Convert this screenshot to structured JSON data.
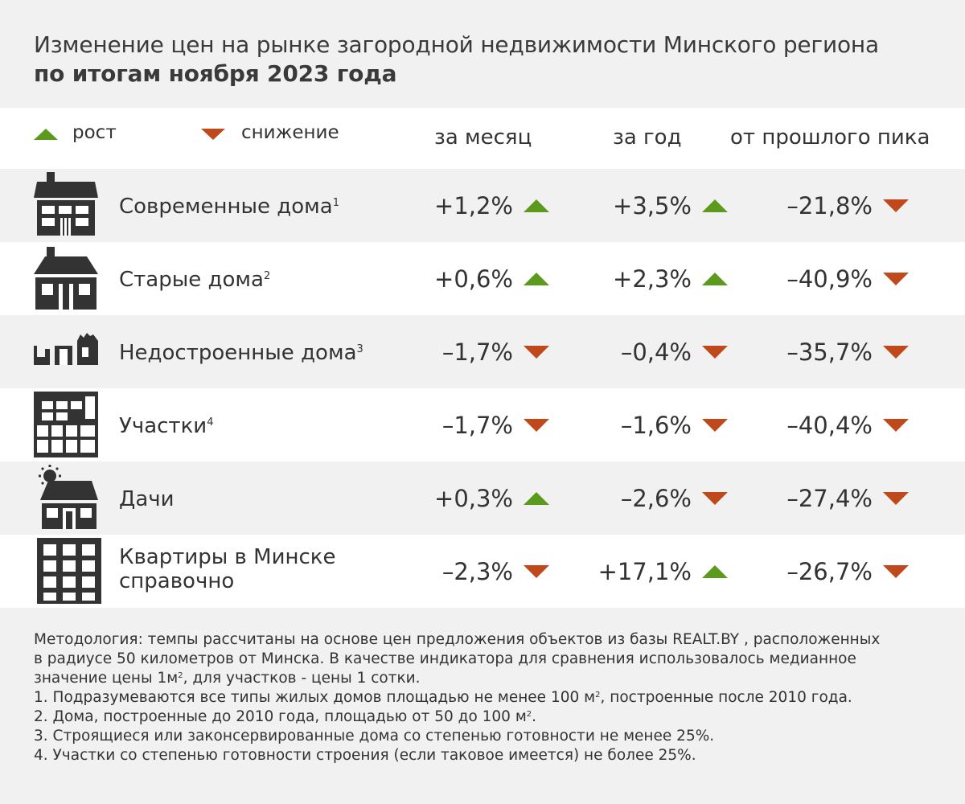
{
  "title": {
    "line1": "Изменение цен на рынке загородной недвижимости Минского региона",
    "line2": "по итогам ноября 2023 года"
  },
  "legend": {
    "up": "рост",
    "down": "снижение"
  },
  "columns": {
    "month": "за месяц",
    "year": "за год",
    "peak": "от прошлого пика"
  },
  "colors": {
    "up": "#5c9a1e",
    "down": "#c0491b",
    "icon": "#333333"
  },
  "rows": [
    {
      "label": "Современные дома",
      "sup": "1",
      "icon": "modern-house-icon",
      "month": "+1,2%",
      "month_dir": "up",
      "year": "+3,5%",
      "year_dir": "up",
      "peak": "–21,8%",
      "peak_dir": "down"
    },
    {
      "label": "Старые дома",
      "sup": "2",
      "icon": "old-house-icon",
      "month": "+0,6%",
      "month_dir": "up",
      "year": "+2,3%",
      "year_dir": "up",
      "peak": "–40,9%",
      "peak_dir": "down"
    },
    {
      "label": "Недостроенные дома",
      "sup": "3",
      "icon": "unfinished-house-icon",
      "month": "–1,7%",
      "month_dir": "down",
      "year": "–0,4%",
      "year_dir": "down",
      "peak": "–35,7%",
      "peak_dir": "down"
    },
    {
      "label": "Участки",
      "sup": "4",
      "icon": "land-plots-icon",
      "month": "–1,7%",
      "month_dir": "down",
      "year": "–1,6%",
      "year_dir": "down",
      "peak": "–40,4%",
      "peak_dir": "down"
    },
    {
      "label": "Дачи",
      "sup": "",
      "icon": "dacha-icon",
      "month": "+0,3%",
      "month_dir": "up",
      "year": "–2,6%",
      "year_dir": "down",
      "peak": "–27,4%",
      "peak_dir": "down"
    },
    {
      "label": "Квартиры в Минске",
      "label2": "справочно",
      "sup": "",
      "icon": "apartment-building-icon",
      "month": "–2,3%",
      "month_dir": "down",
      "year": "+17,1%",
      "year_dir": "up",
      "peak": "–26,7%",
      "peak_dir": "down"
    }
  ],
  "notes": {
    "methodology_1": "Методология: темпы рассчитаны на основе цен предложения объектов из базы REALT.BY , расположенных",
    "methodology_2": "в радиусе 50 километров от Минска. В качестве индикатора для сравнения использовалось медианное",
    "methodology_3a": "значение цены 1м",
    "methodology_3sup": "2",
    "methodology_3b": ", для участков  - цены 1 сотки.",
    "note1a": "1. Подразумеваются все типы жилых домов площадью не менее 100 м",
    "note1sup": "2",
    "note1b": ", построенные после 2010 года.",
    "note2a": "2. Дома, построенные до 2010 года, площадью от 50 до 100 м",
    "note2sup": "2",
    "note2b": ".",
    "note3": "3. Строящиеся или законсервированные дома со степенью готовности не менее 25%.",
    "note4": "4. Участки со степенью готовности строения (если таковое имеется) не более 25%."
  },
  "chart_data": {
    "type": "table",
    "title": "Изменение цен на рынке загородной недвижимости Минского региона по итогам ноября 2023 года",
    "columns": [
      "за месяц",
      "за год",
      "от прошлого пика"
    ],
    "categories": [
      "Современные дома",
      "Старые дома",
      "Недостроенные дома",
      "Участки",
      "Дачи",
      "Квартиры в Минске справочно"
    ],
    "series": [
      {
        "name": "за месяц",
        "values": [
          1.2,
          0.6,
          -1.7,
          -1.7,
          0.3,
          -2.3
        ]
      },
      {
        "name": "за год",
        "values": [
          3.5,
          2.3,
          -0.4,
          -1.6,
          -2.6,
          17.1
        ]
      },
      {
        "name": "от прошлого пика",
        "values": [
          -21.8,
          -40.9,
          -35.7,
          -40.4,
          -27.4,
          -26.7
        ]
      }
    ],
    "unit": "%"
  }
}
